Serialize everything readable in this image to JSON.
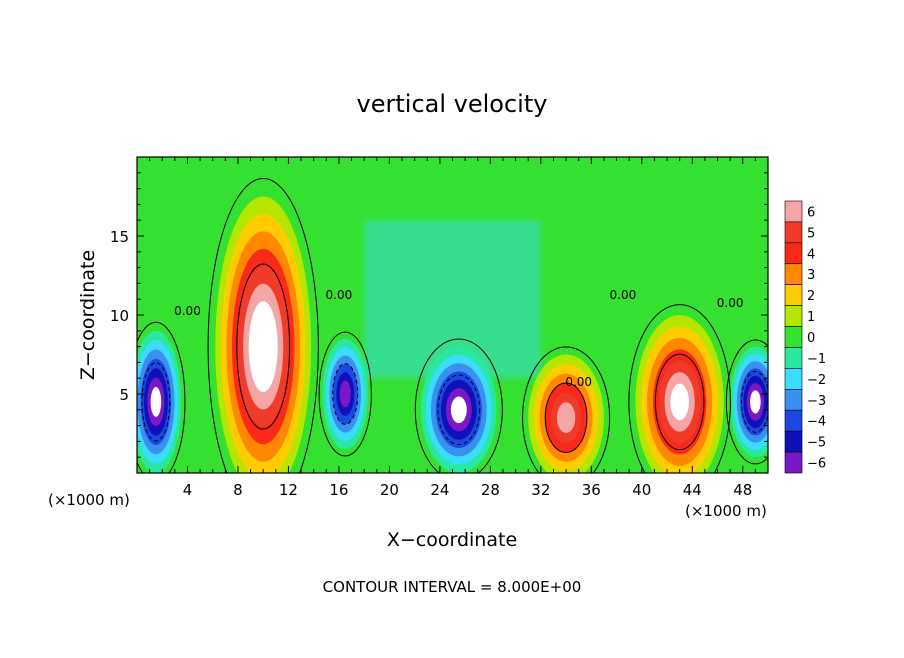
{
  "chart_data": {
    "type": "heatmap",
    "title": "vertical velocity",
    "xlabel": "X−coordinate",
    "ylabel": "Z−coordinate",
    "x_unit_left": "(×1000 m)",
    "x_unit_right": "(×1000 m)",
    "footer": "CONTOUR INTERVAL = 8.000E+00",
    "xlim": [
      0,
      50
    ],
    "ylim": [
      0,
      20
    ],
    "x_ticks": [
      4,
      8,
      12,
      16,
      20,
      24,
      28,
      32,
      36,
      40,
      44,
      48
    ],
    "y_ticks": [
      5,
      10,
      15
    ],
    "colorbar": {
      "levels": [
        "6",
        "5",
        "4",
        "3",
        "2",
        "1",
        "0",
        "−1",
        "−2",
        "−3",
        "−4",
        "−5",
        "−6"
      ],
      "colors": [
        "#f4a6a6",
        "#f03a2a",
        "#fa2a1a",
        "#ff8800",
        "#ffcc00",
        "#b4e600",
        "#34e030",
        "#2be8a0",
        "#3adcff",
        "#3a90f0",
        "#1a48e0",
        "#1010b8",
        "#7a18c8"
      ]
    },
    "contour_labels": [
      {
        "text": "0.00",
        "x": 4.0,
        "z": 10.0
      },
      {
        "text": "0.00",
        "x": 16.0,
        "z": 11.0
      },
      {
        "text": "0.00",
        "x": 35.0,
        "z": 5.5
      },
      {
        "text": "0.00",
        "x": 38.5,
        "z": 11.0
      },
      {
        "text": "0.00",
        "x": 47.0,
        "z": 10.5
      }
    ],
    "features": [
      {
        "sign": "positive",
        "x_center": 10.0,
        "z_center": 8.0,
        "x_halfwidth": 3.8,
        "z_halfheight": 9.5,
        "peak": 8
      },
      {
        "sign": "positive",
        "x_center": 34.0,
        "z_center": 3.5,
        "x_halfwidth": 3.0,
        "z_halfheight": 4.0,
        "peak": 6
      },
      {
        "sign": "positive",
        "x_center": 43.0,
        "z_center": 4.5,
        "x_halfwidth": 3.5,
        "z_halfheight": 5.5,
        "peak": 7
      },
      {
        "sign": "negative",
        "x_center": 1.5,
        "z_center": 4.5,
        "x_halfwidth": 2.0,
        "z_halfheight": 4.5,
        "peak": -7
      },
      {
        "sign": "negative",
        "x_center": 16.5,
        "z_center": 5.0,
        "x_halfwidth": 1.8,
        "z_halfheight": 3.5,
        "peak": -6
      },
      {
        "sign": "negative",
        "x_center": 25.5,
        "z_center": 4.0,
        "x_halfwidth": 3.0,
        "z_halfheight": 4.0,
        "peak": -7
      },
      {
        "sign": "negative",
        "x_center": 49.0,
        "z_center": 4.5,
        "x_halfwidth": 2.0,
        "z_halfheight": 3.5,
        "peak": -7
      }
    ]
  }
}
